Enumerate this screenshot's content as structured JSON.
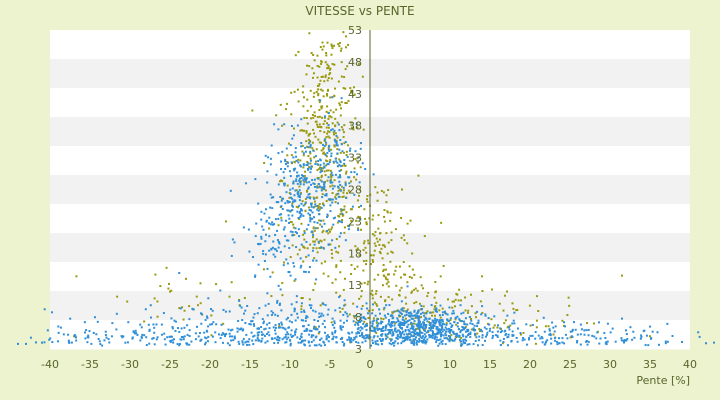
{
  "chart_data": {
    "type": "scatter",
    "title": "VITESSE vs PENTE",
    "xlabel": "Pente [%]",
    "ylabel": "",
    "xlim": [
      -40,
      40
    ],
    "ylim": [
      3,
      53
    ],
    "x_ticks": [
      -40,
      -35,
      -30,
      -25,
      -20,
      -15,
      -10,
      -5,
      0,
      5,
      10,
      15,
      20,
      25,
      30,
      35,
      40
    ],
    "y_ticks": [
      3,
      8,
      13,
      18,
      23,
      28,
      33,
      38,
      43,
      48,
      53
    ],
    "y_tick_labels": [
      "3",
      "8",
      "13",
      "18",
      "23",
      "28",
      "33",
      "38",
      "43",
      "48",
      "53"
    ],
    "grid": true,
    "legend": "none",
    "colors": {
      "background": "#edf2cf",
      "plot_band_light": "#ffffff",
      "plot_band_dark": "#f2f2f2",
      "series_blue": "#2f8fd8",
      "series_olive": "#9a9a10",
      "text": "#58652a"
    },
    "series": [
      {
        "color": "#9a9a10",
        "clusters": [
          {
            "cx": -6,
            "cy": 30,
            "sx": 2.5,
            "sy": 9,
            "n": 420
          },
          {
            "cx": -5,
            "cy": 45,
            "sx": 1.5,
            "sy": 4,
            "n": 90
          },
          {
            "cx": 1,
            "cy": 18,
            "sx": 2.5,
            "sy": 6,
            "n": 160
          },
          {
            "cx": 6,
            "cy": 9,
            "sx": 5,
            "sy": 3,
            "n": 140
          },
          {
            "cx": 15,
            "cy": 7,
            "sx": 7,
            "sy": 2,
            "n": 60
          },
          {
            "cx": -20,
            "cy": 10,
            "sx": 8,
            "sy": 3,
            "n": 40
          }
        ],
        "points": [
          [
            31.5,
            14.5
          ],
          [
            -18,
            23
          ],
          [
            -3,
            52
          ],
          [
            4,
            28
          ],
          [
            -11,
            38
          ],
          [
            -37,
            5
          ],
          [
            28,
            7
          ],
          [
            35,
            5
          ],
          [
            -25,
            12
          ],
          [
            -23,
            14
          ]
        ]
      },
      {
        "color": "#2f8fd8",
        "clusters": [
          {
            "cx": -8,
            "cy": 27,
            "sx": 2.5,
            "sy": 5,
            "n": 320
          },
          {
            "cx": -12,
            "cy": 20,
            "sx": 2,
            "sy": 4,
            "n": 80
          },
          {
            "cx": -4,
            "cy": 32,
            "sx": 1.5,
            "sy": 4,
            "n": 80
          },
          {
            "cx": 6,
            "cy": 6.5,
            "sx": 4,
            "sy": 1.6,
            "n": 520
          },
          {
            "cx": -8,
            "cy": 6,
            "sx": 8,
            "sy": 2.5,
            "n": 320
          },
          {
            "cx": -22,
            "cy": 5,
            "sx": 9,
            "sy": 2,
            "n": 220
          },
          {
            "cx": 22,
            "cy": 5,
            "sx": 9,
            "sy": 1.5,
            "n": 180
          },
          {
            "cx": 0,
            "cy": 4.6,
            "sx": 20,
            "sy": 0.6,
            "n": 260
          }
        ],
        "points": [
          [
            -43,
            3.8
          ],
          [
            -41,
            4.0
          ],
          [
            -44,
            3.8
          ],
          [
            42,
            3.9
          ],
          [
            44,
            3.8
          ],
          [
            43,
            4.0
          ],
          [
            -39,
            4.2
          ],
          [
            39,
            4.1
          ]
        ]
      }
    ]
  }
}
